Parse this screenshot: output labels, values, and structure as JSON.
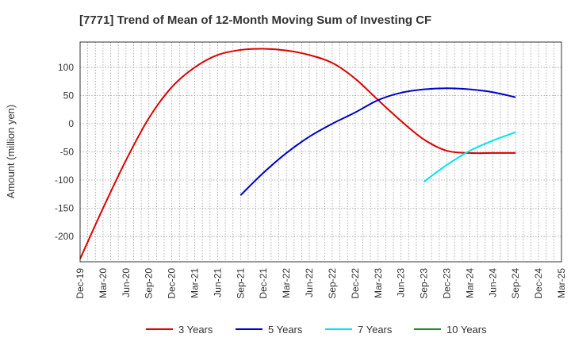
{
  "chart_data": {
    "type": "line",
    "title": "[7771]  Trend of Mean of 12-Month Moving Sum of Investing CF",
    "ylabel": "Amount (million yen)",
    "xlabel": "",
    "ylim": [
      -245,
      145
    ],
    "yticks": [
      100,
      50,
      0,
      -50,
      -100,
      -150,
      -200
    ],
    "x_categories": [
      "Dec-19",
      "Mar-20",
      "Jun-20",
      "Sep-20",
      "Dec-20",
      "Mar-21",
      "Jun-21",
      "Sep-21",
      "Dec-21",
      "Mar-22",
      "Jun-22",
      "Sep-22",
      "Dec-22",
      "Mar-23",
      "Jun-23",
      "Sep-23",
      "Dec-23",
      "Mar-24",
      "Jun-24",
      "Sep-24",
      "Dec-24",
      "Mar-25"
    ],
    "grid": true,
    "legend_position": "bottom",
    "series": [
      {
        "name": "3 Years",
        "color": "#e00000",
        "x": [
          "Dec-19",
          "Mar-20",
          "Jun-20",
          "Sep-20",
          "Dec-20",
          "Mar-21",
          "Jun-21",
          "Sep-21",
          "Dec-21",
          "Mar-22",
          "Jun-22",
          "Sep-22",
          "Dec-22",
          "Mar-23",
          "Jun-23",
          "Sep-23",
          "Dec-23",
          "Mar-24",
          "Jun-24",
          "Sep-24"
        ],
        "values": [
          -240,
          -150,
          -65,
          10,
          65,
          100,
          122,
          131,
          133,
          130,
          122,
          108,
          80,
          42,
          5,
          -28,
          -48,
          -52,
          -52,
          -52
        ]
      },
      {
        "name": "5 Years",
        "color": "#0000cc",
        "x": [
          "Sep-21",
          "Dec-21",
          "Mar-22",
          "Jun-22",
          "Sep-22",
          "Dec-22",
          "Mar-23",
          "Jun-23",
          "Sep-23",
          "Dec-23",
          "Mar-24",
          "Jun-24",
          "Sep-24"
        ],
        "values": [
          -127,
          -87,
          -52,
          -23,
          0,
          20,
          42,
          55,
          61,
          63,
          61,
          56,
          47
        ]
      },
      {
        "name": "7 Years",
        "color": "#00e5ee",
        "x": [
          "Sep-23",
          "Dec-23",
          "Mar-24",
          "Jun-24",
          "Sep-24"
        ],
        "values": [
          -103,
          -73,
          -48,
          -30,
          -15
        ]
      },
      {
        "name": "10 Years",
        "color": "#228b22",
        "x": [],
        "values": []
      }
    ]
  }
}
